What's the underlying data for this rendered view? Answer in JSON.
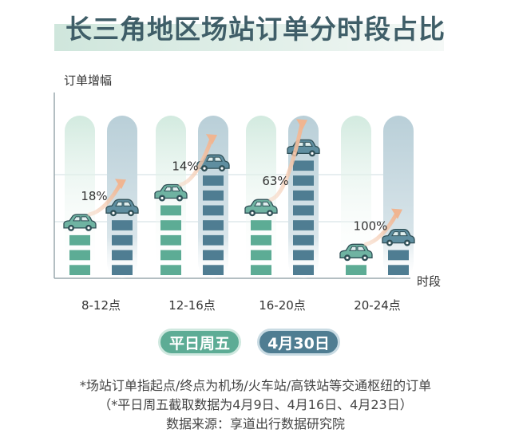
{
  "title": "长三角地区场站订单分时段占比",
  "chart_data": {
    "type": "bar",
    "ylabel": "订单增幅",
    "xlabel": "时段",
    "categories": [
      "8-12点",
      "12-16点",
      "16-20点",
      "20-24点"
    ],
    "series": [
      {
        "name": "平日周五",
        "values": [
          3,
          5,
          4,
          1
        ]
      },
      {
        "name": "4月30日",
        "values": [
          4,
          7,
          8,
          2
        ]
      }
    ],
    "growth_labels": [
      "18%",
      "14%",
      "63%",
      "100%"
    ],
    "colors": {
      "weekday": "#5dac95",
      "holiday": "#4f7d92",
      "weekday_bg": "#d7ece3",
      "holiday_bg": "#c4d6de",
      "arrow": "#f2c0a0"
    }
  },
  "legend": {
    "weekday": "平日周五",
    "holiday": "4月30日"
  },
  "notes": [
    "*场站订单指起点/终点为机场/火车站/高铁站等交通枢纽的订单",
    "（*平日周五截取数据为4月9日、4月16日、4月23日）",
    "数据来源：享道出行数据研究院"
  ]
}
